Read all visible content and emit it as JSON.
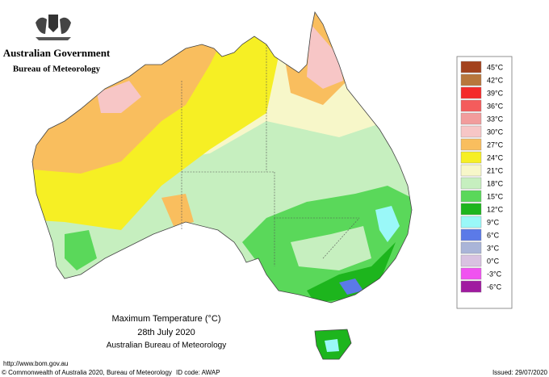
{
  "header": {
    "title": "Australian Government",
    "subtitle": "Bureau of Meteorology"
  },
  "legend": [
    {
      "label": "45°C",
      "color": "#a3421d"
    },
    {
      "label": "42°C",
      "color": "#b8773c"
    },
    {
      "label": "39°C",
      "color": "#f42a2a"
    },
    {
      "label": "36°C",
      "color": "#f45c5c"
    },
    {
      "label": "33°C",
      "color": "#f29c9c"
    },
    {
      "label": "30°C",
      "color": "#f7c6c6"
    },
    {
      "label": "27°C",
      "color": "#f9be5e"
    },
    {
      "label": "24°C",
      "color": "#f6ef24"
    },
    {
      "label": "21°C",
      "color": "#f7f7c9"
    },
    {
      "label": "18°C",
      "color": "#c6efbf"
    },
    {
      "label": "15°C",
      "color": "#5ad85a"
    },
    {
      "label": "12°C",
      "color": "#1db51d"
    },
    {
      "label": "9°C",
      "color": "#9af8f8"
    },
    {
      "label": "6°C",
      "color": "#5b7ae8"
    },
    {
      "label": "3°C",
      "color": "#aab5d8"
    },
    {
      "label": "0°C",
      "color": "#d9c2e1"
    },
    {
      "label": "-3°C",
      "color": "#f052f0"
    },
    {
      "label": "-6°C",
      "color": "#a01aa0"
    }
  ],
  "map_title": {
    "title": "Maximum Temperature (°C)",
    "date": "28th July 2020",
    "source": "Australian Bureau of Meteorology"
  },
  "footer": {
    "url": "http://www.bom.gov.au",
    "copyright": "© Commonwealth of Australia 2020, Bureau of Meteorology",
    "id_code": "ID code: AWAP",
    "issued": "Issued: 29/07/2020"
  }
}
